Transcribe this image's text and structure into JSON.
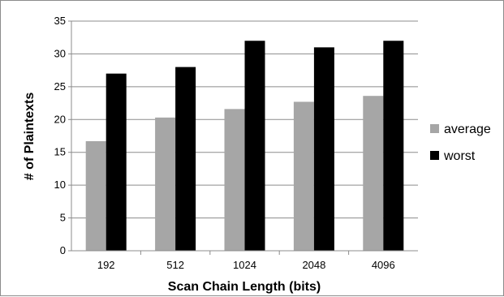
{
  "chart_data": {
    "type": "bar",
    "title": "",
    "xlabel": "Scan Chain Length (bits)",
    "ylabel": "# of Plaintexts",
    "categories": [
      "192",
      "512",
      "1024",
      "2048",
      "4096"
    ],
    "series": [
      {
        "name": "average",
        "values": [
          16.7,
          20.3,
          21.6,
          22.7,
          23.6
        ],
        "color": "#a6a6a6"
      },
      {
        "name": "worst",
        "values": [
          27,
          28,
          32,
          31,
          32
        ],
        "color": "#000000"
      }
    ],
    "ylim": [
      0,
      35
    ],
    "yticks": [
      "0",
      "5",
      "10",
      "15",
      "20",
      "25",
      "30",
      "35"
    ],
    "grid": true,
    "legend_position": "right"
  }
}
